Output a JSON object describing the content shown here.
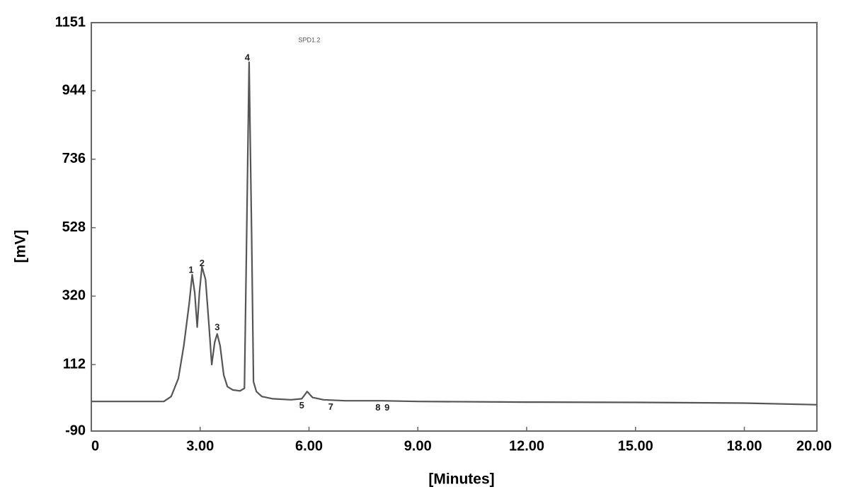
{
  "chart_data": {
    "type": "line",
    "title": "SPD1.2",
    "x_label": "[Minutes]",
    "y_label": "[mV]",
    "xlim": [
      0,
      20
    ],
    "ylim": [
      -90,
      1151
    ],
    "xticks": [
      0,
      {
        "value": 3,
        "label": "3.00"
      },
      {
        "value": 6,
        "label": "6.00"
      },
      {
        "value": 9,
        "label": "9.00"
      },
      {
        "value": 12,
        "label": "12.00"
      },
      {
        "value": 15,
        "label": "15.00"
      },
      {
        "value": 18,
        "label": "18.00"
      },
      {
        "value": 20,
        "label": "20.00"
      }
    ],
    "yticks": [
      -90,
      112,
      320,
      528,
      736,
      944,
      1151
    ],
    "color": "#555555",
    "x": [
      0,
      2.0,
      2.2,
      2.4,
      2.55,
      2.7,
      2.78,
      2.85,
      2.92,
      2.98,
      3.05,
      3.15,
      3.25,
      3.32,
      3.4,
      3.47,
      3.55,
      3.65,
      3.75,
      3.9,
      4.1,
      4.22,
      4.28,
      4.35,
      4.42,
      4.47,
      4.55,
      4.7,
      5.0,
      5.5,
      5.8,
      5.95,
      6.1,
      6.4,
      7.0,
      8.0,
      9.0,
      12.0,
      15.0,
      18.0,
      20.0
    ],
    "values": [
      0,
      0,
      15,
      70,
      170,
      300,
      385,
      330,
      226,
      330,
      410,
      370,
      220,
      112,
      180,
      205,
      170,
      80,
      45,
      35,
      32,
      40,
      500,
      1031,
      500,
      60,
      30,
      15,
      8,
      5,
      8,
      30,
      12,
      5,
      2,
      2,
      0,
      -2,
      -3,
      -5,
      -10
    ],
    "annotations": [
      {
        "text": "1",
        "x": 2.75,
        "y": 390
      },
      {
        "text": "2",
        "x": 3.05,
        "y": 410
      },
      {
        "text": "3",
        "x": 3.47,
        "y": 215
      },
      {
        "text": "4",
        "x": 4.3,
        "y": 1035
      },
      {
        "text": "5",
        "x": 5.8,
        "y": -5
      },
      {
        "text": "7",
        "x": 6.6,
        "y": -10
      },
      {
        "text": "8",
        "x": 7.9,
        "y": -12
      },
      {
        "text": "9",
        "x": 8.15,
        "y": -12
      }
    ]
  }
}
